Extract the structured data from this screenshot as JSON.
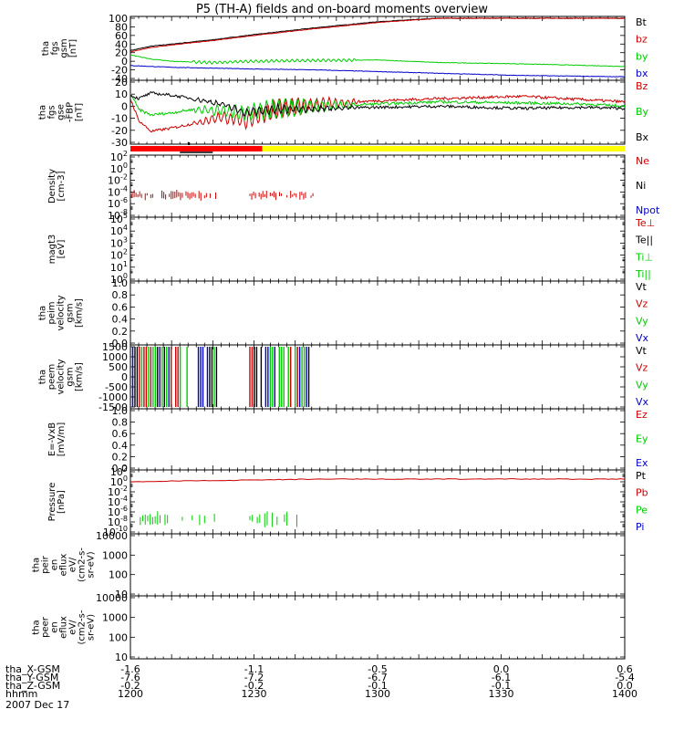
{
  "title": "P5 (TH-A) fields and on-board moments overview",
  "colors": {
    "black": "#000000",
    "red": "#cc0000",
    "green": "#00cc00",
    "blue": "#0000cc",
    "yellow": "#ffff00",
    "bar_red": "#ff0000"
  },
  "chart_data": [
    {
      "id": "fgs_gsm",
      "type": "line",
      "ylabel": [
        "tha",
        "fgs",
        "gsm",
        "[nT]"
      ],
      "ylim": [
        -40,
        100
      ],
      "ytick_labels": [
        "100",
        "80",
        "60",
        "40",
        "20",
        "0",
        "-20",
        "-40"
      ],
      "legend": [
        {
          "text": "Bt",
          "color": "black"
        },
        {
          "text": "bz",
          "color": "red"
        },
        {
          "text": "by",
          "color": "green"
        },
        {
          "text": "bx",
          "color": "blue"
        }
      ],
      "series": [
        {
          "name": "Bt",
          "color": "black",
          "x": [
            0,
            5,
            10,
            20,
            30,
            45,
            60,
            75,
            95
          ],
          "y": [
            25,
            35,
            40,
            50,
            62,
            78,
            92,
            100,
            100
          ]
        },
        {
          "name": "bz",
          "color": "red",
          "x": [
            0,
            5,
            10,
            20,
            30,
            45,
            60,
            75,
            95
          ],
          "y": [
            22,
            32,
            38,
            48,
            60,
            76,
            90,
            100,
            100
          ]
        },
        {
          "name": "by",
          "color": "green",
          "x": [
            0,
            5,
            10,
            20,
            30,
            45,
            60,
            75,
            95,
            120
          ],
          "y": [
            15,
            5,
            0,
            -3,
            0,
            2,
            3,
            -3,
            -6,
            -12
          ]
        },
        {
          "name": "bx",
          "color": "blue",
          "x": [
            0,
            5,
            10,
            20,
            30,
            45,
            60,
            75,
            95,
            120
          ],
          "y": [
            -10,
            -12,
            -14,
            -16,
            -18,
            -20,
            -24,
            -28,
            -33,
            -36
          ]
        }
      ]
    },
    {
      "id": "fgs_gse",
      "type": "line",
      "ylabel": [
        "tha",
        "fgs",
        "gse",
        "-FBP",
        "[nT]"
      ],
      "ylim": [
        -35,
        20
      ],
      "ytick_labels": [
        "20",
        "10",
        "0",
        "-10",
        "-20",
        "-30"
      ],
      "legend": [
        {
          "text": "Bz",
          "color": "red"
        },
        {
          "text": "By",
          "color": "green"
        },
        {
          "text": "Bx",
          "color": "black"
        }
      ],
      "series": [
        {
          "name": "Bz",
          "color": "red",
          "x": [
            0,
            2,
            5,
            10,
            15,
            22,
            28,
            35,
            45,
            60,
            75,
            95,
            110,
            120
          ],
          "y": [
            5,
            -15,
            -25,
            -22,
            -18,
            -12,
            -15,
            -5,
            0,
            3,
            5,
            7,
            4,
            2
          ]
        },
        {
          "name": "By",
          "color": "green",
          "x": [
            0,
            2,
            5,
            10,
            15,
            22,
            28,
            35,
            45,
            60,
            75,
            95,
            110,
            120
          ],
          "y": [
            10,
            -5,
            -10,
            -8,
            -5,
            -6,
            -8,
            -4,
            -2,
            0,
            2,
            1,
            0,
            -2
          ]
        },
        {
          "name": "Bx",
          "color": "black",
          "x": [
            0,
            2,
            5,
            10,
            15,
            22,
            28,
            35,
            45,
            60,
            75,
            95,
            110,
            120
          ],
          "y": [
            8,
            5,
            10,
            8,
            5,
            0,
            -8,
            -5,
            -4,
            -3,
            -2,
            -4,
            -3,
            -4
          ]
        }
      ]
    },
    {
      "id": "density",
      "type": "scatter",
      "ylabel": [
        "Density",
        "[cm-3]"
      ],
      "log": true,
      "ylim_exp": [
        -9,
        2
      ],
      "ytick_labels": [
        "10^2",
        "10^0",
        "10^-2",
        "10^-4",
        "10^-6",
        "10^-8"
      ],
      "legend": [
        {
          "text": "Ne",
          "color": "red"
        },
        {
          "text": "Ni",
          "color": "black"
        },
        {
          "text": "Npot",
          "color": "blue"
        }
      ]
    },
    {
      "id": "moms_t3",
      "type": "line",
      "ylabel": [
        "magt3",
        "[eV]"
      ],
      "log": true,
      "ylim_exp": [
        0,
        5
      ],
      "ytick_labels": [
        "10^5",
        "10^4",
        "10^3",
        "10^2",
        "10^1",
        "10^0"
      ],
      "legend": [
        {
          "text": "Te⊥",
          "color": "red"
        },
        {
          "text": "Te||",
          "color": "black"
        },
        {
          "text": "Ti⊥",
          "color": "green"
        },
        {
          "text": "Ti||",
          "color": "green"
        }
      ]
    },
    {
      "id": "peim_velocity",
      "type": "line",
      "ylabel": [
        "tha",
        "peim",
        "velocity",
        "gsm",
        "[km/s]"
      ],
      "ylim": [
        0,
        1
      ],
      "ytick_labels": [
        "1.0",
        "0.8",
        "0.6",
        "0.4",
        "0.2",
        "0.0"
      ],
      "legend": [
        {
          "text": "Vt",
          "color": "black"
        },
        {
          "text": "Vz",
          "color": "red"
        },
        {
          "text": "Vy",
          "color": "green"
        },
        {
          "text": "Vx",
          "color": "blue"
        }
      ]
    },
    {
      "id": "peem_velocity",
      "type": "line",
      "ylabel": [
        "tha",
        "peem",
        "velocity",
        "gsm",
        "[km/s]"
      ],
      "ylim": [
        -1500,
        1500
      ],
      "ytick_labels": [
        "1500",
        "1000",
        "500",
        "0",
        "-500",
        "-1000",
        "-1500"
      ],
      "legend": [
        {
          "text": "Vt",
          "color": "black"
        },
        {
          "text": "Vz",
          "color": "red"
        },
        {
          "text": "Vy",
          "color": "green"
        },
        {
          "text": "Vx",
          "color": "blue"
        }
      ]
    },
    {
      "id": "e_vxb",
      "type": "line",
      "ylabel": [
        "E=-VxB",
        "[mV/m]"
      ],
      "ylim": [
        0,
        1
      ],
      "ytick_labels": [
        "1.0",
        "0.8",
        "0.6",
        "0.4",
        "0.2",
        "0.0"
      ],
      "legend": [
        {
          "text": "Ez",
          "color": "red"
        },
        {
          "text": "Ey",
          "color": "green"
        },
        {
          "text": "Ex",
          "color": "blue"
        }
      ]
    },
    {
      "id": "pressure",
      "type": "line",
      "ylabel": [
        "Pressure",
        "[nPa]"
      ],
      "log": true,
      "ylim_exp": [
        -10,
        2
      ],
      "ytick_labels": [
        "10^2",
        "10^0",
        "10^-2",
        "10^-4",
        "10^-6",
        "10^-8",
        "10^-10"
      ],
      "legend": [
        {
          "text": "Pt",
          "color": "black"
        },
        {
          "text": "Pb",
          "color": "red"
        },
        {
          "text": "Pe",
          "color": "green"
        },
        {
          "text": "Pi",
          "color": "blue"
        }
      ]
    },
    {
      "id": "peir_en",
      "type": "line",
      "ylabel": [
        "tha",
        "peir",
        "en",
        "eflux",
        "eV/",
        "(cm2-s-",
        "sr-eV)"
      ],
      "ytick_labels": [
        "10000",
        "1000",
        "100",
        "10"
      ]
    },
    {
      "id": "peer_en",
      "type": "line",
      "ylabel": [
        "tha",
        "peer",
        "en",
        "eflux",
        "eV/",
        "(cm2-s-",
        "sr-eV)"
      ],
      "ytick_labels": [
        "10000",
        "1000",
        "100",
        "10"
      ]
    }
  ],
  "time_axis": {
    "row_labels": [
      "tha_X-GSM",
      "tha_Y-GSM",
      "tha_Z-GSM",
      "hhmm"
    ],
    "date": "2007 Dec 17",
    "ticks": [
      {
        "minute": 0,
        "values": [
          "-1.6",
          "-7.6",
          "-0.2",
          "1200"
        ]
      },
      {
        "minute": 30,
        "values": [
          "-1.1",
          "-7.2",
          "-0.2",
          "1230"
        ]
      },
      {
        "minute": 60,
        "values": [
          "-0.5",
          "-6.7",
          "-0.1",
          "1300"
        ]
      },
      {
        "minute": 90,
        "values": [
          "0.0",
          "-6.1",
          "-0.1",
          "1330"
        ]
      },
      {
        "minute": 120,
        "values": [
          "0.6",
          "-5.4",
          "0.0",
          "1400"
        ]
      }
    ]
  },
  "status_bar": {
    "segments": [
      {
        "from": 0,
        "to": 32,
        "color": "bar_red"
      },
      {
        "from": 32,
        "to": 120,
        "color": "yellow"
      }
    ]
  }
}
